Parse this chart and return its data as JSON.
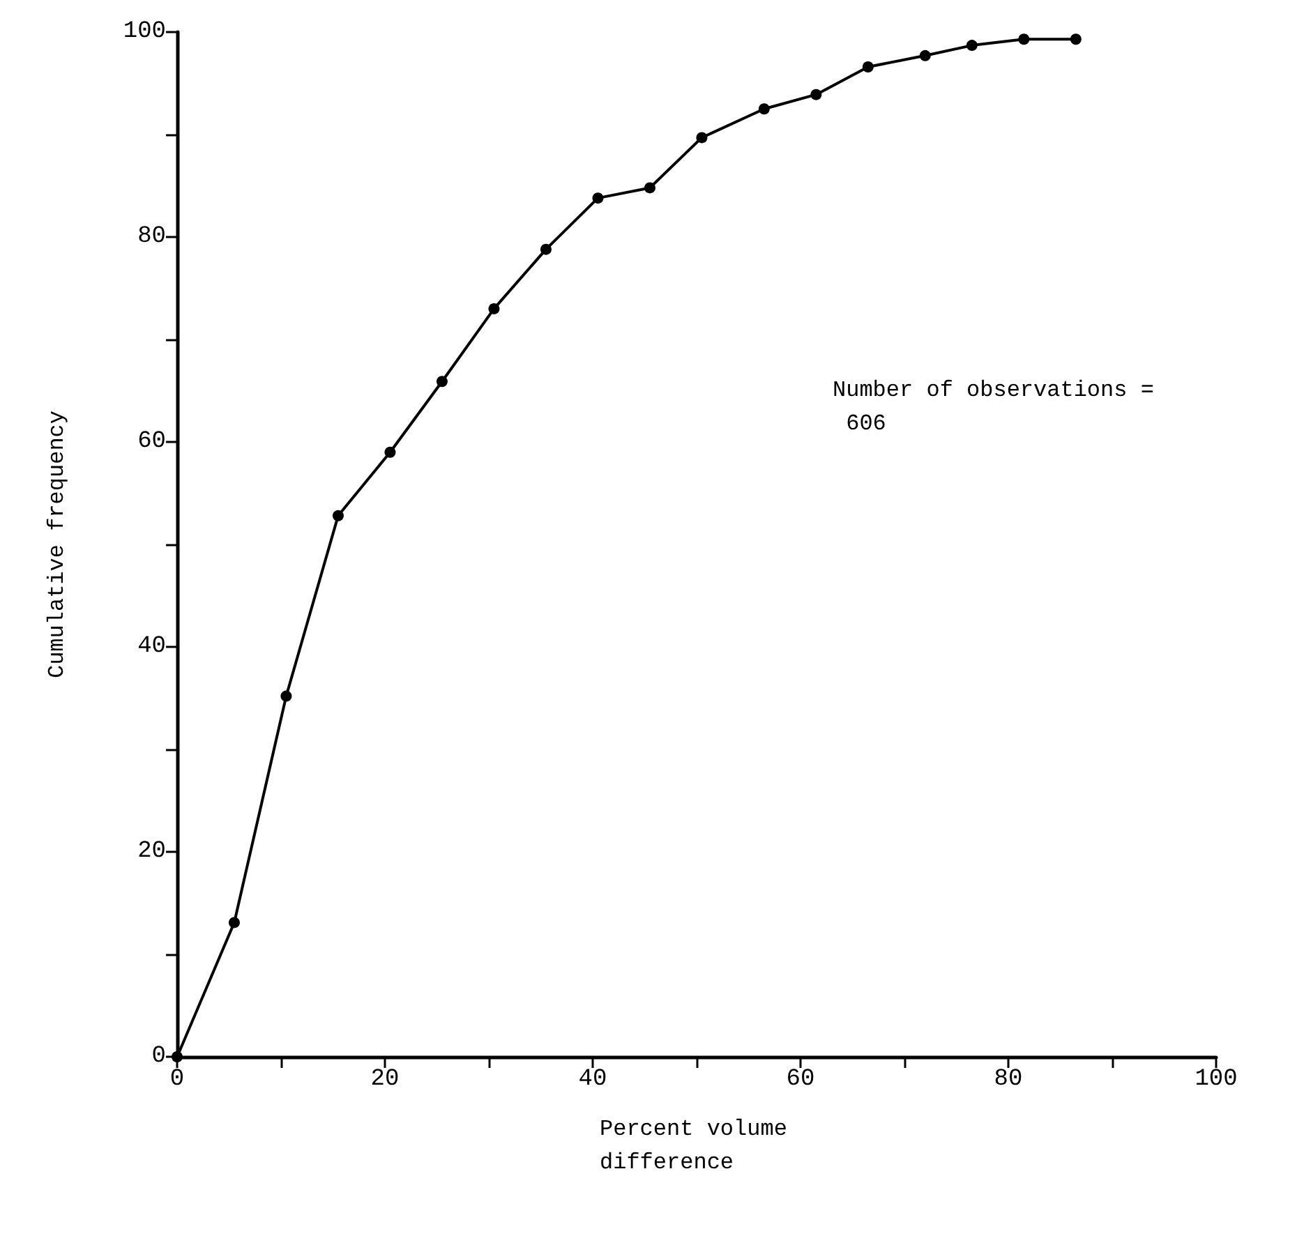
{
  "chart_data": {
    "type": "line",
    "xlabel": "Percent volume difference",
    "ylabel": "Cumulative frequency",
    "annotations": [
      "Number of observations = 606"
    ],
    "x": [
      0,
      5.5,
      10.5,
      15.5,
      20.5,
      25.5,
      30.5,
      35.5,
      40.5,
      45.5,
      50.5,
      56.5,
      61.5,
      66.5,
      72,
      76.5,
      81.5,
      86.5
    ],
    "series": [
      {
        "color": "#000000",
        "values": [
          0,
          13.1,
          35.2,
          52.8,
          59.0,
          65.9,
          73.0,
          78.8,
          83.8,
          84.8,
          89.7,
          92.5,
          93.9,
          96.6,
          97.7,
          98.7,
          99.3,
          99.3
        ]
      }
    ],
    "xlim": [
      0,
      100
    ],
    "ylim": [
      0,
      100
    ],
    "xticks": [
      0,
      {
        "value": 10,
        "label": null
      },
      20,
      {
        "value": 30,
        "label": null
      },
      40,
      {
        "value": 50,
        "label": null
      },
      60,
      {
        "value": 70,
        "label": null
      },
      80,
      {
        "value": 90,
        "label": null
      },
      100
    ],
    "yticks": [
      0,
      {
        "value": 10,
        "label": null
      },
      20,
      {
        "value": 30,
        "label": null
      },
      40,
      {
        "value": 50,
        "label": null
      },
      60,
      {
        "value": 70,
        "label": null
      },
      80,
      {
        "value": 90,
        "label": null
      },
      100
    ],
    "grid": false,
    "marker": "circle",
    "line_style": "solid"
  }
}
